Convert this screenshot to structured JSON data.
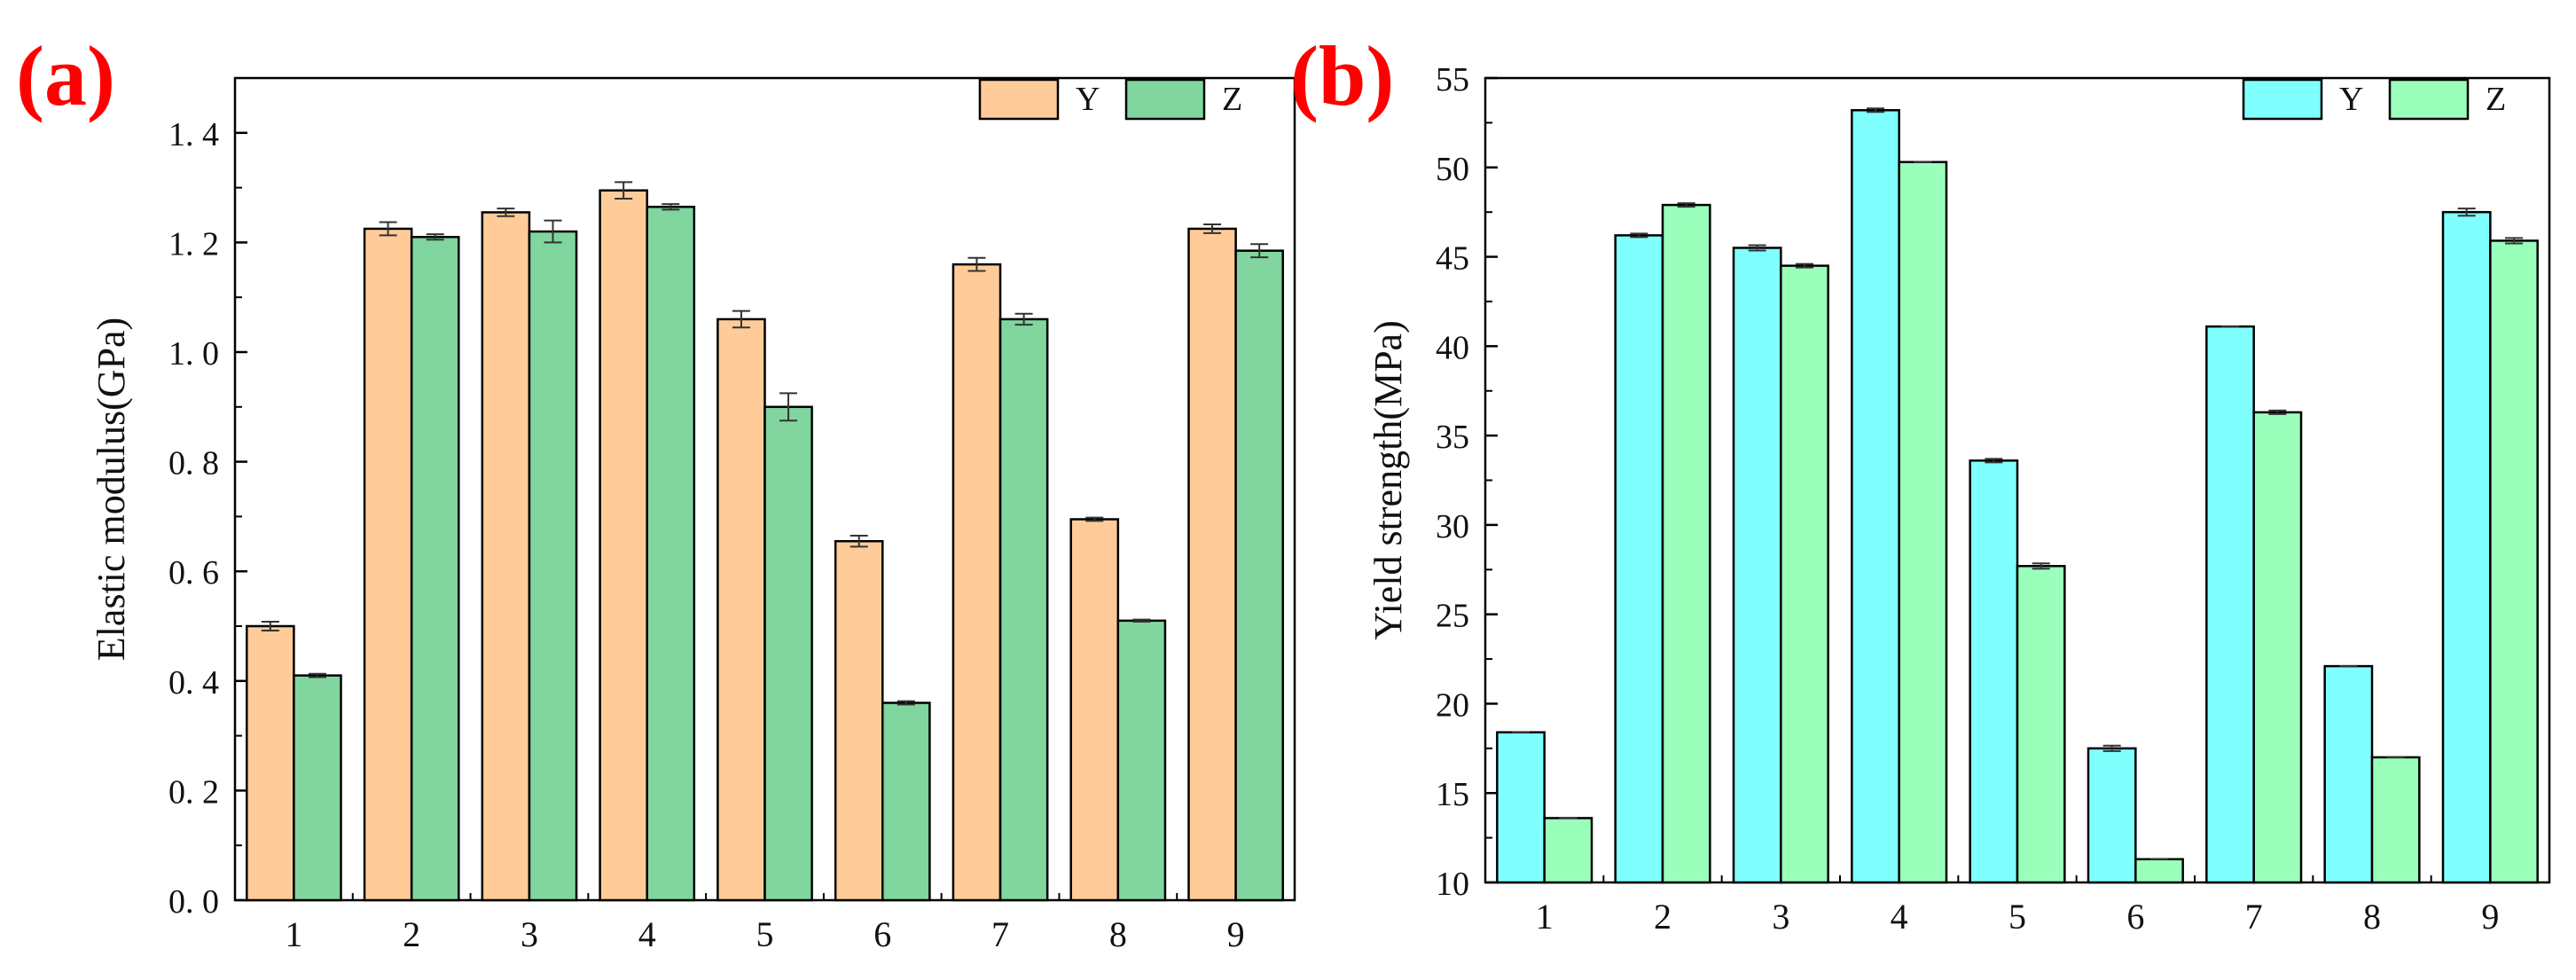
{
  "chart_data": [
    {
      "panel_label": "(a)",
      "type": "bar",
      "categories": [
        "1",
        "2",
        "3",
        "4",
        "5",
        "6",
        "7",
        "8",
        "9"
      ],
      "series": [
        {
          "name": "Y",
          "color": "#FFCC99",
          "values": [
            0.5,
            1.225,
            1.255,
            1.295,
            1.06,
            0.655,
            1.16,
            0.695,
            1.225
          ],
          "errors": [
            0.008,
            0.012,
            0.007,
            0.015,
            0.015,
            0.01,
            0.012,
            0.003,
            0.008
          ]
        },
        {
          "name": "Z",
          "color": "#80D69E",
          "values": [
            0.41,
            1.21,
            1.22,
            1.265,
            0.9,
            0.36,
            1.06,
            0.51,
            1.185
          ],
          "errors": [
            0.003,
            0.005,
            0.02,
            0.005,
            0.025,
            0.003,
            0.01,
            0.002,
            0.012
          ]
        }
      ],
      "ylabel": "Elastic modulus(GPa)",
      "xlabel": "",
      "ylim": [
        0,
        1.5
      ],
      "yticks": [
        0.0,
        0.2,
        0.4,
        0.6,
        0.8,
        1.0,
        1.2,
        1.4
      ],
      "ytick_labels": [
        "0. 0",
        "0. 2",
        "0. 4",
        "0. 6",
        "0. 8",
        "1. 0",
        "1. 2",
        "1. 4"
      ],
      "legend": "top-right"
    },
    {
      "panel_label": "(b)",
      "type": "bar",
      "categories": [
        "1",
        "2",
        "3",
        "4",
        "5",
        "6",
        "7",
        "8",
        "9"
      ],
      "series": [
        {
          "name": "Y",
          "color": "#80FFFF",
          "values": [
            18.4,
            46.2,
            45.5,
            53.2,
            33.6,
            17.5,
            41.1,
            22.1,
            47.5
          ],
          "errors": [
            0.0,
            0.1,
            0.15,
            0.1,
            0.1,
            0.15,
            0.0,
            0.0,
            0.2
          ]
        },
        {
          "name": "Z",
          "color": "#99FFBB",
          "values": [
            13.6,
            47.9,
            44.5,
            50.3,
            27.7,
            11.3,
            36.3,
            17.0,
            45.9
          ],
          "errors": [
            0.0,
            0.1,
            0.1,
            0.0,
            0.15,
            0.0,
            0.1,
            0.0,
            0.15
          ]
        }
      ],
      "ylabel": "Yield strength(MPa)",
      "xlabel": "",
      "ylim": [
        10,
        55
      ],
      "yticks": [
        10,
        15,
        20,
        25,
        30,
        35,
        40,
        45,
        50,
        55
      ],
      "ytick_labels": [
        "10",
        "15",
        "20",
        "25",
        "30",
        "35",
        "40",
        "45",
        "50",
        "55"
      ],
      "legend": "top-right"
    }
  ]
}
